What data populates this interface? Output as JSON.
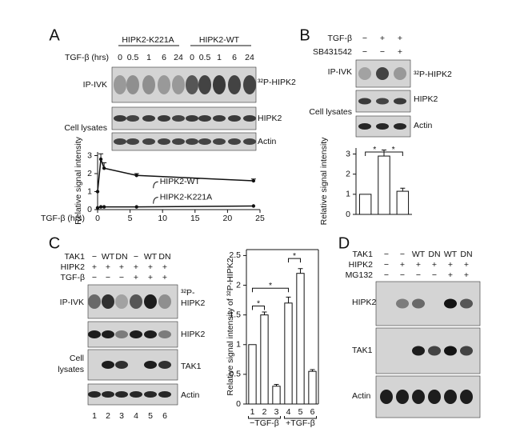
{
  "panel_a": {
    "label": "A",
    "groups": [
      "HIPK2-K221A",
      "HIPK2-WT"
    ],
    "time_label": "TGF-β (hrs)",
    "times": [
      "0",
      "0.5",
      "1",
      "6",
      "24",
      "0",
      "0.5",
      "1",
      "6",
      "24"
    ],
    "row_labels": [
      "IP-IVK",
      "Cell lysates"
    ],
    "band_labels": [
      "³²P-HIPK2",
      "HIPK2",
      "Actin"
    ]
  },
  "panel_b": {
    "label": "B",
    "treatments": [
      {
        "name": "TGF-β",
        "signs": [
          "−",
          "+",
          "+"
        ]
      },
      {
        "name": "SB431542",
        "signs": [
          "−",
          "−",
          "+"
        ]
      }
    ],
    "row_labels": [
      "IP-IVK",
      "Cell lysates"
    ],
    "band_labels": [
      "³²P-HIPK2",
      "HIPK2",
      "Actin"
    ]
  },
  "panel_c": {
    "label": "C",
    "treatments": [
      {
        "name": "TAK1",
        "signs": [
          "−",
          "WT",
          "DN",
          "−",
          "WT",
          "DN"
        ]
      },
      {
        "name": "HIPK2",
        "signs": [
          "+",
          "+",
          "+",
          "+",
          "+",
          "+"
        ]
      },
      {
        "name": "TGF-β",
        "signs": [
          "−",
          "−",
          "−",
          "+",
          "+",
          "+"
        ]
      }
    ],
    "ip_label": "IP-IVK",
    "lysate_label_lines": [
      "Cell",
      "lysates"
    ],
    "ip_band_lines": [
      "³²P-",
      "HIPK2"
    ],
    "band_labels": [
      "HIPK2",
      "TAK1",
      "Actin"
    ],
    "lanes": [
      "1",
      "2",
      "3",
      "4",
      "5",
      "6"
    ]
  },
  "panel_d": {
    "label": "D",
    "treatments": [
      {
        "name": "TAK1",
        "signs": [
          "−",
          "−",
          "WT",
          "DN",
          "WT",
          "DN"
        ]
      },
      {
        "name": "HIPK2",
        "signs": [
          "−",
          "+",
          "+",
          "+",
          "+",
          "+"
        ]
      },
      {
        "name": "MG132",
        "signs": [
          "−",
          "−",
          "−",
          "−",
          "+",
          "+"
        ]
      }
    ],
    "band_labels": [
      "HIPK2",
      "TAK1",
      "Actin"
    ]
  },
  "chart_data": [
    {
      "type": "line",
      "x_label": "TGF-β (hrs)",
      "y_label": "Relative signal intensity",
      "x": [
        0,
        0.5,
        1,
        6,
        24
      ],
      "xlim": [
        0,
        25
      ],
      "xticks": [
        0,
        5,
        10,
        15,
        20,
        25
      ],
      "ylim": [
        0,
        3.2
      ],
      "yticks": [
        0,
        1,
        2,
        3
      ],
      "series": [
        {
          "name": "HIPK2-WT",
          "color": "#111111",
          "values": [
            1,
            2.8,
            2.3,
            1.9,
            1.6
          ],
          "errors": [
            0,
            0.3,
            0.3,
            0.1,
            0.1
          ]
        },
        {
          "name": "HIPK2-K221A",
          "color": "#111111",
          "values": [
            0.1,
            0.15,
            0.15,
            0.15,
            0.2
          ],
          "errors": [
            0,
            0,
            0,
            0,
            0
          ]
        }
      ]
    },
    {
      "type": "bar",
      "y_label": "Relative signal intensity",
      "categories": [
        null,
        null,
        null
      ],
      "values": [
        1,
        2.9,
        1.15
      ],
      "errors": [
        0,
        0.3,
        0.15
      ],
      "color": "#ffffff",
      "ylim": [
        0,
        3.3
      ],
      "yticks": [
        0,
        1,
        2,
        3
      ],
      "annotations": [
        "*",
        "*"
      ]
    },
    {
      "type": "bar",
      "y_label": "Relative signal intensity of ³²P-HIPK2",
      "categories": [
        "1",
        "2",
        "3",
        "4",
        "5",
        "6"
      ],
      "values": [
        1,
        1.5,
        0.3,
        1.7,
        2.2,
        0.55
      ],
      "errors": [
        0,
        0.05,
        0.03,
        0.1,
        0.08,
        0.03
      ],
      "color": "#ffffff",
      "ylim": [
        0,
        2.6
      ],
      "yticks": [
        0,
        0.5,
        1,
        1.5,
        2,
        2.5
      ],
      "groups": [
        "−TGF-β",
        "+TGF-β"
      ],
      "annotations": [
        "*",
        "*",
        "*"
      ]
    }
  ]
}
